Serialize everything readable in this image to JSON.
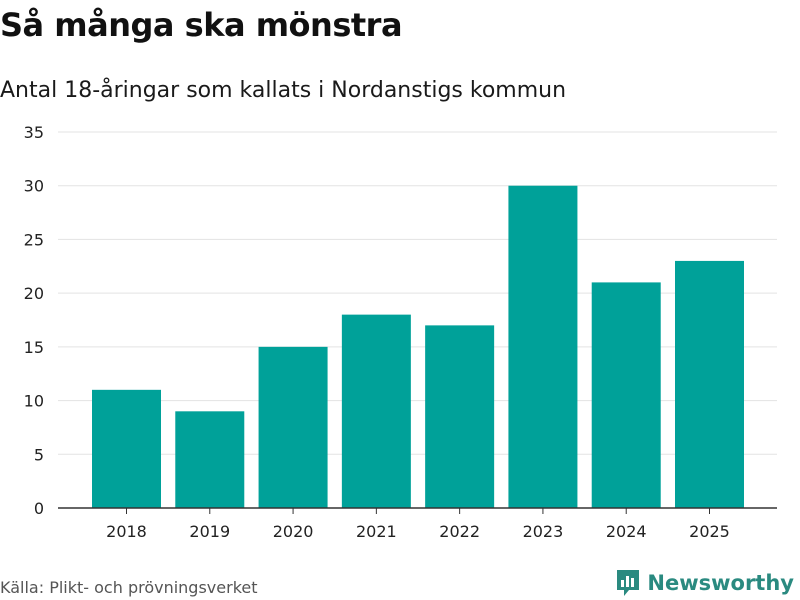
{
  "header": {
    "title": "Så många ska mönstra",
    "subtitle": "Antal 18-åringar som kallats i Nordanstigs kommun"
  },
  "footer": {
    "source": "Källa: Plikt- och prövningsverket",
    "brand": "Newsworthy",
    "brand_icon": "newsworthy-logo-icon"
  },
  "colors": {
    "bar": "#00A199",
    "grid": "#e3e3e3",
    "axis": "#333333",
    "brand": "#2a8a80"
  },
  "chart_data": {
    "type": "bar",
    "title": "Så många ska mönstra",
    "subtitle": "Antal 18-åringar som kallats i Nordanstigs kommun",
    "xlabel": "",
    "ylabel": "",
    "categories": [
      "2018",
      "2019",
      "2020",
      "2021",
      "2022",
      "2023",
      "2024",
      "2025"
    ],
    "values": [
      11,
      9,
      15,
      18,
      17,
      30,
      21,
      23
    ],
    "ylim": [
      0,
      35
    ],
    "yticks": [
      0,
      5,
      10,
      15,
      20,
      25,
      30,
      35
    ],
    "grid": true,
    "legend": "none"
  }
}
